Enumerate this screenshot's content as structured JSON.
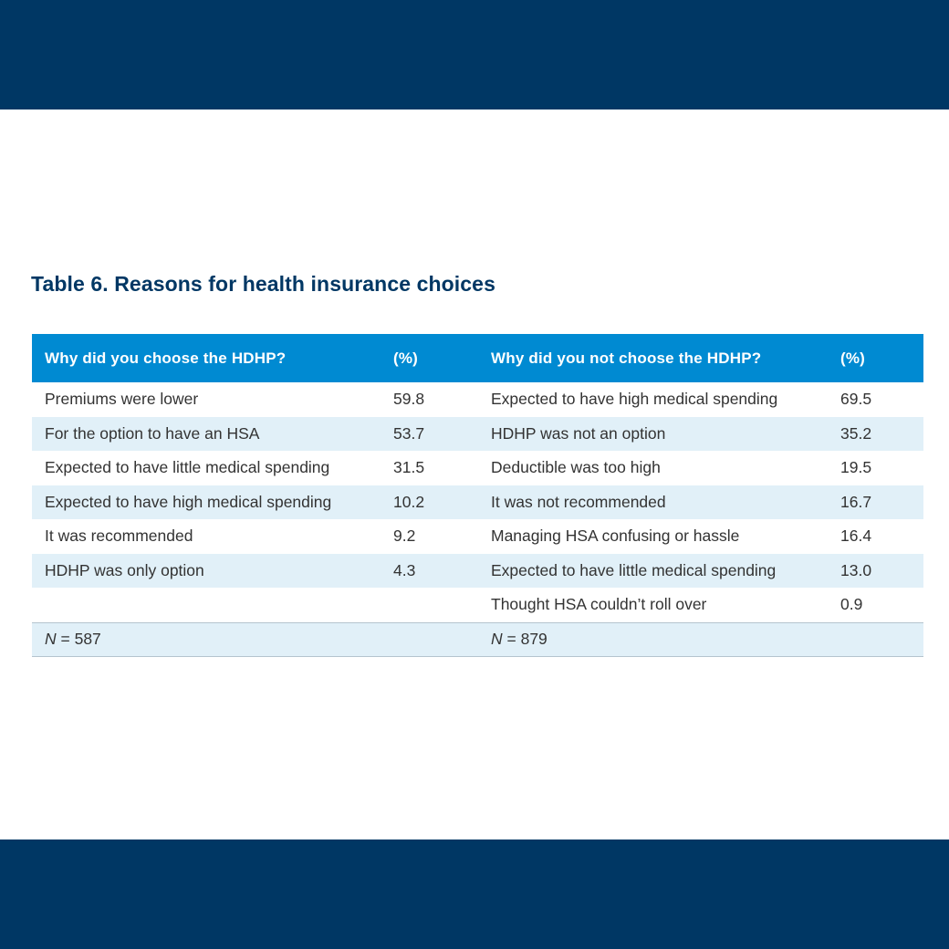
{
  "title": "Table 6. Reasons for health insurance choices",
  "table": {
    "headers": {
      "chose_reason": "Why did you choose the HDHP?",
      "chose_pct": "(%)",
      "not_reason": "Why did you not choose the HDHP?",
      "not_pct": "(%)"
    },
    "rows": [
      {
        "chose_reason": "Premiums were lower",
        "chose_pct": "59.8",
        "not_reason": "Expected to have high medical spending",
        "not_pct": "69.5"
      },
      {
        "chose_reason": "For the option to have an HSA",
        "chose_pct": "53.7",
        "not_reason": "HDHP was not an option",
        "not_pct": "35.2"
      },
      {
        "chose_reason": "Expected to have little medical spending",
        "chose_pct": "31.5",
        "not_reason": "Deductible was too high",
        "not_pct": "19.5"
      },
      {
        "chose_reason": "Expected to have high medical spending",
        "chose_pct": "10.2",
        "not_reason": "It was not recommended",
        "not_pct": "16.7"
      },
      {
        "chose_reason": "It was recommended",
        "chose_pct": "9.2",
        "not_reason": "Managing HSA confusing or hassle",
        "not_pct": "16.4"
      },
      {
        "chose_reason": "HDHP was only option",
        "chose_pct": "4.3",
        "not_reason": "Expected to have little medical spending",
        "not_pct": "13.0"
      },
      {
        "chose_reason": "",
        "chose_pct": "",
        "not_reason": "Thought HSA couldn’t roll over",
        "not_pct": "0.9"
      }
    ],
    "footer": {
      "n_symbol": "N",
      "chose_n": " = 587",
      "not_n": " = 879"
    }
  },
  "colors": {
    "band": "#003764",
    "header": "#008ad2",
    "stripe": "#e1f0f8",
    "title": "#003764"
  }
}
